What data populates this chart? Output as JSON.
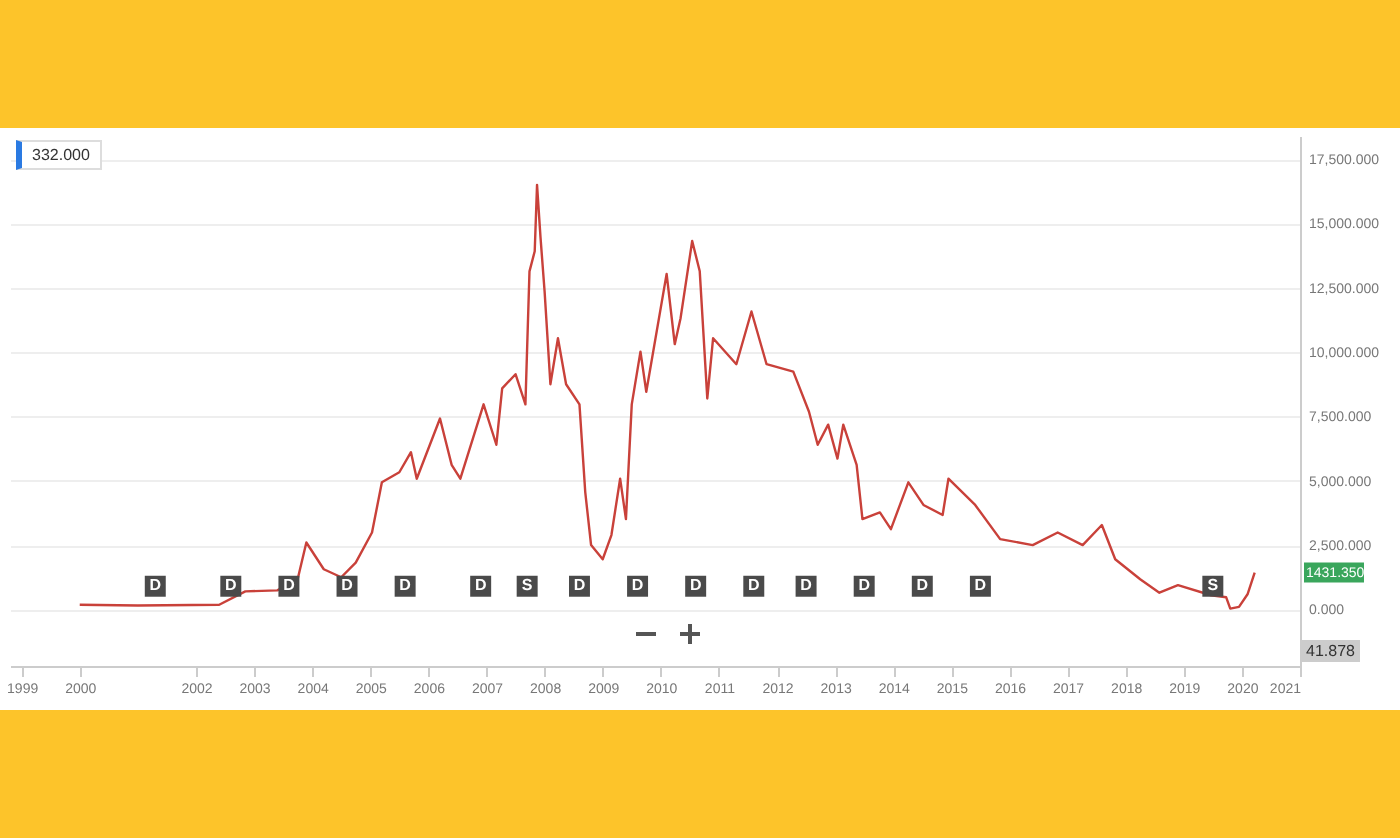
{
  "chart_data": {
    "type": "line",
    "x": [
      2000.0,
      2001.0,
      2002.4,
      null,
      2002.85,
      2003.4,
      2003.75,
      2003.9,
      2004.2,
      2004.5,
      2004.75,
      2005.03,
      2005.2,
      2005.5,
      2005.7,
      2005.8,
      2006.2,
      2006.4,
      2006.55,
      2006.95,
      2007.17,
      2007.27,
      2007.5,
      2007.67,
      2007.74,
      2007.83,
      2007.87,
      2007.93,
      2008.0,
      2008.1,
      2008.23,
      2008.37,
      2008.6,
      2008.7,
      2008.8,
      2009.0,
      2009.15,
      2009.3,
      2009.4,
      2009.5,
      2009.65,
      2009.75,
      2010.1,
      2010.24,
      2010.34,
      2010.54,
      2010.67,
      2010.8,
      2010.9,
      2011.3,
      2011.56,
      2011.82,
      2012.28,
      2012.55,
      2012.7,
      2012.88,
      2013.04,
      2013.14,
      2013.37,
      2013.47,
      2013.77,
      2013.96,
      2014.26,
      2014.52,
      2014.85,
      2014.95,
      2015.41,
      2015.84,
      2016.4,
      2016.83,
      2017.26,
      2017.59,
      2017.82,
      2018.25,
      2018.58,
      2018.9,
      2019.47,
      2019.73,
      null,
      2019.8,
      2019.95,
      2020.1,
      2020.22
    ],
    "series": [
      {
        "color": "#c9413a",
        "values": [
          180,
          150,
          180,
          null,
          700,
          740,
          1170,
          2600,
          1560,
          1250,
          1820,
          2990,
          4940,
          5330,
          6110,
          5080,
          7420,
          5620,
          5080,
          7970,
          6400,
          8590,
          9140,
          7970,
          13140,
          13920,
          16500,
          14450,
          12360,
          8750,
          10540,
          8750,
          7970,
          4550,
          2500,
          1950,
          2890,
          5080,
          3510,
          7970,
          10020,
          8460,
          13040,
          10310,
          11320,
          14320,
          13140,
          8200,
          10540,
          9530,
          11580,
          9530,
          9240,
          7680,
          6400,
          7180,
          5860,
          7180,
          5620,
          3510,
          3770,
          3120,
          4940,
          4060,
          3670,
          5080,
          4060,
          2730,
          2500,
          2990,
          2500,
          3280,
          1950,
          1170,
          650,
          940,
          550,
          470,
          null,
          30,
          100,
          600,
          1430
        ]
      }
    ],
    "xlim": [
      1998.8,
      2021.0
    ],
    "xticks": [
      1999,
      2000,
      2002,
      2003,
      2004,
      2005,
      2006,
      2007,
      2008,
      2009,
      2010,
      2011,
      2012,
      2013,
      2014,
      2015,
      2016,
      2017,
      2018,
      2019,
      2020,
      2021
    ],
    "ylim": [
      -2200,
      18400
    ],
    "yticks": [
      {
        "value": 0,
        "label": "0.000"
      },
      {
        "value": 2500,
        "label": "2,500.000"
      },
      {
        "value": 5000,
        "label": "5,000.000"
      },
      {
        "value": 7500,
        "label": "7,500.000"
      },
      {
        "value": 10000,
        "label": "10,000.000"
      },
      {
        "value": 12500,
        "label": "12,500.000"
      },
      {
        "value": 15000,
        "label": "15,000.000"
      },
      {
        "value": 17500,
        "label": "17,500.000"
      }
    ],
    "grid": "y",
    "annotations": [
      "332.000",
      "1431.350",
      "41.878",
      {
        "text": "D",
        "x": 2001.3,
        "y": 900
      },
      {
        "text": "D",
        "x": 2002.6,
        "y": 900
      },
      {
        "text": "D",
        "x": 2003.6,
        "y": 900
      },
      {
        "text": "D",
        "x": 2004.6,
        "y": 900
      },
      {
        "text": "D",
        "x": 2005.6,
        "y": 900
      },
      {
        "text": "D",
        "x": 2006.9,
        "y": 900
      },
      {
        "text": "S",
        "x": 2007.7,
        "y": 900
      },
      {
        "text": "D",
        "x": 2008.6,
        "y": 900
      },
      {
        "text": "D",
        "x": 2009.6,
        "y": 900
      },
      {
        "text": "D",
        "x": 2010.6,
        "y": 900
      },
      {
        "text": "D",
        "x": 2011.6,
        "y": 900
      },
      {
        "text": "D",
        "x": 2012.5,
        "y": 900
      },
      {
        "text": "D",
        "x": 2013.5,
        "y": 900
      },
      {
        "text": "D",
        "x": 2014.5,
        "y": 900
      },
      {
        "text": "D",
        "x": 2015.5,
        "y": 900
      },
      {
        "text": "S",
        "x": 2019.5,
        "y": 900
      }
    ]
  }
}
